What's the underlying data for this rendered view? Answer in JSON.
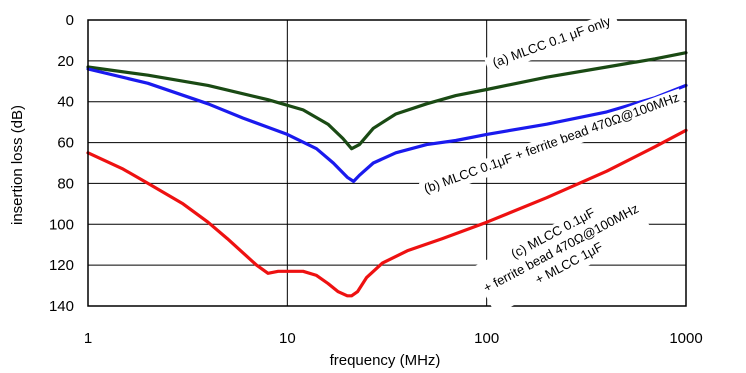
{
  "chart_data": {
    "type": "line",
    "title": "",
    "xlabel": "frequency (MHz)",
    "ylabel": "insertion loss (dB)",
    "xscale": "log",
    "xlim": [
      1,
      1000
    ],
    "ylim": [
      0,
      140
    ],
    "y_inverted": true,
    "grid": true,
    "x_ticks": [
      1,
      10,
      100,
      1000
    ],
    "x_tick_labels": [
      "1",
      "10",
      "100",
      "1000"
    ],
    "y_ticks": [
      0,
      20,
      40,
      60,
      80,
      100,
      120,
      140
    ],
    "y_tick_labels": [
      "0",
      "20",
      "40",
      "60",
      "80",
      "100",
      "120",
      "140"
    ],
    "series": [
      {
        "key": "a",
        "color": "#1a4a14",
        "x": [
          1,
          2,
          4,
          8,
          12,
          16,
          19,
          21,
          23,
          27,
          35,
          50,
          70,
          100,
          200,
          400,
          700,
          1000
        ],
        "values": [
          23,
          27,
          32,
          39,
          44,
          51,
          58,
          63,
          61,
          53,
          46,
          41,
          37,
          34,
          28,
          23,
          19,
          16
        ]
      },
      {
        "key": "b",
        "color": "#1a1aee",
        "x": [
          1,
          2,
          4,
          6,
          10,
          14,
          17,
          20,
          21.5,
          23,
          27,
          35,
          50,
          70,
          100,
          200,
          400,
          700,
          1000
        ],
        "values": [
          24,
          31,
          41,
          48,
          56,
          63,
          70,
          77,
          79,
          76,
          70,
          65,
          61,
          59,
          56,
          51,
          45,
          38,
          32
        ]
      },
      {
        "key": "c",
        "color": "#ee1111",
        "x": [
          1,
          1.5,
          2,
          3,
          4,
          5,
          6,
          7,
          8,
          9,
          10,
          12,
          14,
          16,
          18,
          20,
          21,
          22.5,
          25,
          30,
          40,
          60,
          100,
          200,
          400,
          700,
          1000
        ],
        "values": [
          65,
          73,
          80,
          90,
          99,
          107,
          114,
          120,
          124,
          123,
          123,
          123,
          125,
          129,
          133,
          135,
          135,
          133,
          126,
          119,
          113,
          107,
          99,
          87,
          74,
          62,
          54
        ]
      }
    ],
    "annotations": [
      {
        "key": "a",
        "lines": [
          "(a) MLCC 0.1 μF only"
        ]
      },
      {
        "key": "b",
        "lines": [
          "(b) MLCC 0.1μF + ferrite bead 470Ω@100MHz"
        ]
      },
      {
        "key": "c",
        "lines": [
          "(c) MLCC 0.1μF",
          "+ ferrite bead 470Ω@100MHz",
          "+ MLCC 1μF"
        ]
      }
    ]
  }
}
